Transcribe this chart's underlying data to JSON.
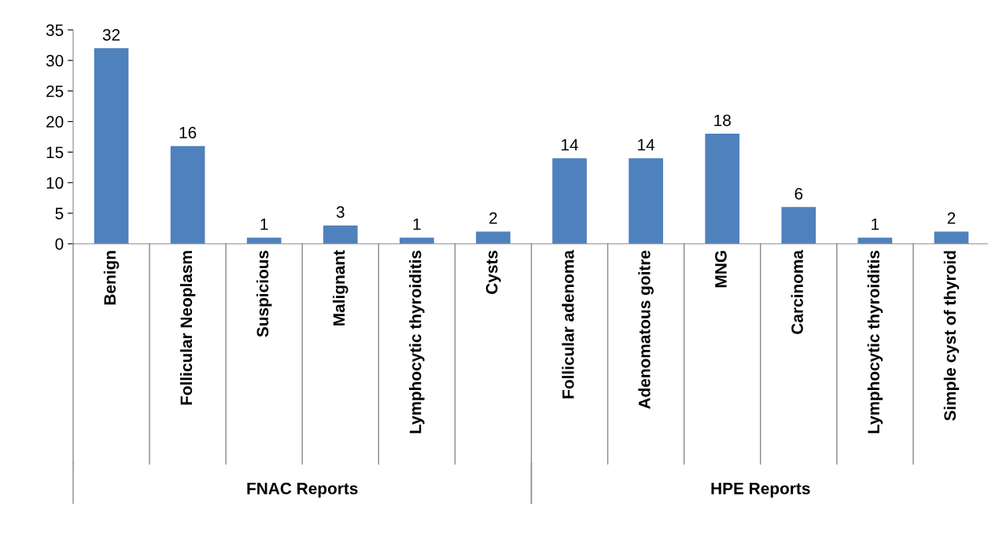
{
  "chart_data": {
    "type": "bar",
    "categories": [
      "Benign",
      "Follicular Neoplasm",
      "Suspicious",
      "Malignant",
      "Lymphocytic thyroiditis",
      "Cysts",
      "Follicular adenoma",
      "Adenomatous goitre",
      "MNG",
      "Carcinoma",
      "Lymphocytic thyroiditis",
      "Simple cyst of thyroid"
    ],
    "values": [
      32,
      16,
      1,
      3,
      1,
      2,
      14,
      14,
      18,
      6,
      1,
      2
    ],
    "color": "#4f81bd",
    "ylim": [
      0,
      35
    ],
    "yticks": [
      0,
      5,
      10,
      15,
      20,
      25,
      30,
      35
    ],
    "data_labels": true,
    "grid": false,
    "legend": false,
    "annotations": [
      "FNAC Reports",
      "HPE Reports"
    ]
  }
}
